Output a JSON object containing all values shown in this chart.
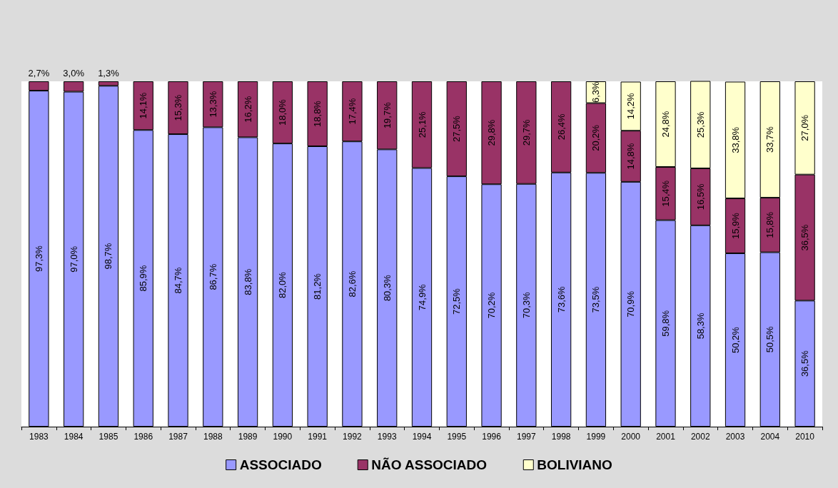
{
  "chart_data": {
    "type": "bar",
    "stacked": true,
    "categories": [
      "1983",
      "1984",
      "1985",
      "1986",
      "1987",
      "1988",
      "1989",
      "1990",
      "1991",
      "1992",
      "1993",
      "1994",
      "1995",
      "1996",
      "1997",
      "1998",
      "1999",
      "2000",
      "2001",
      "2002",
      "2003",
      "2004",
      "2010"
    ],
    "ylim": [
      0,
      100
    ],
    "tick_labels": "x",
    "grid": false,
    "legend": "bottom",
    "series": [
      {
        "name": "ASSOCIADO",
        "color": "#9999ff",
        "values": [
          97.3,
          97.0,
          98.7,
          85.9,
          84.7,
          86.7,
          83.8,
          82.0,
          81.2,
          82.6,
          80.3,
          74.9,
          72.5,
          70.2,
          70.3,
          73.6,
          73.5,
          70.9,
          59.8,
          58.3,
          50.2,
          50.5,
          36.5
        ],
        "value_labels": [
          "97,3%",
          "97,0%",
          "98,7%",
          "85,9%",
          "84,7%",
          "86,7%",
          "83,8%",
          "82,0%",
          "81,2%",
          "82,6%",
          "80,3%",
          "74,9%",
          "72,5%",
          "70,2%",
          "70,3%",
          "73,6%",
          "73,5%",
          "70,9%",
          "59,8%",
          "58,3%",
          "50,2%",
          "50,5%",
          "36,5%"
        ]
      },
      {
        "name": "NÃO ASSOCIADO",
        "color": "#993366",
        "values": [
          2.7,
          3.0,
          1.3,
          14.1,
          15.3,
          13.3,
          16.2,
          18.0,
          18.8,
          17.4,
          19.7,
          25.1,
          27.5,
          29.8,
          29.7,
          26.4,
          20.2,
          14.8,
          15.4,
          16.5,
          15.9,
          15.8,
          36.5
        ],
        "value_labels": [
          "2,7%",
          "3,0%",
          "1,3%",
          "14,1%",
          "15,3%",
          "13,3%",
          "16,2%",
          "18,0%",
          "18,8%",
          "17,4%",
          "19,7%",
          "25,1%",
          "27,5%",
          "29,8%",
          "29,7%",
          "26,4%",
          "20,2%",
          "14,8%",
          "15,4%",
          "16,5%",
          "15,9%",
          "15,8%",
          "36,5%"
        ]
      },
      {
        "name": "BOLIVIANO",
        "color": "#ffffcc",
        "values": [
          null,
          null,
          null,
          null,
          null,
          null,
          null,
          null,
          null,
          null,
          null,
          null,
          null,
          null,
          null,
          null,
          6.3,
          14.2,
          24.8,
          25.3,
          33.8,
          33.7,
          27.0
        ],
        "value_labels": [
          null,
          null,
          null,
          null,
          null,
          null,
          null,
          null,
          null,
          null,
          null,
          null,
          null,
          null,
          null,
          null,
          "6,3%",
          "14,2%",
          "24,8%",
          "25,3%",
          "33,8%",
          "33,7%",
          "27,0%"
        ]
      }
    ]
  }
}
